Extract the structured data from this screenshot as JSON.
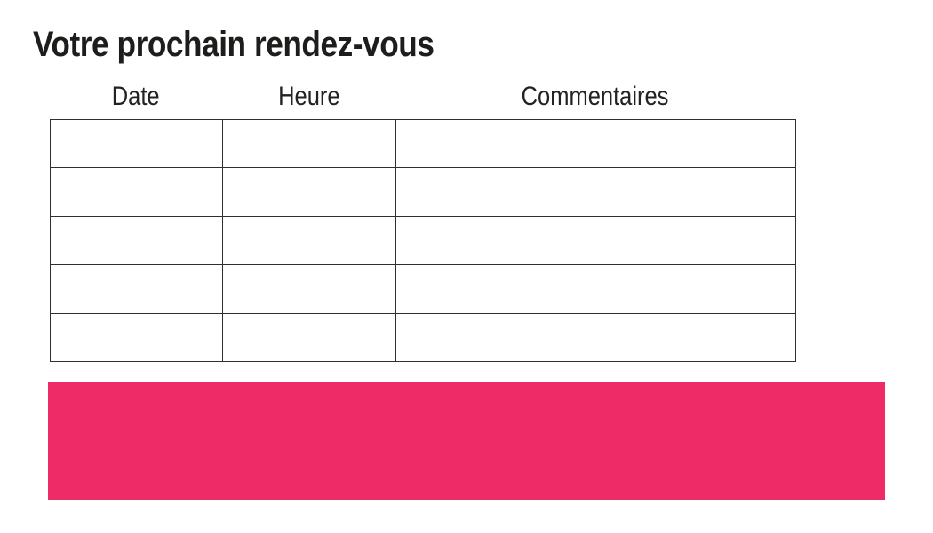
{
  "page": {
    "title": "Votre prochain rendez-vous"
  },
  "table": {
    "headers": [
      "Date",
      "Heure",
      "Commentaires"
    ],
    "rows": [
      [
        "",
        "",
        ""
      ],
      [
        "",
        "",
        ""
      ],
      [
        "",
        "",
        ""
      ],
      [
        "",
        "",
        ""
      ],
      [
        "",
        "",
        ""
      ]
    ]
  },
  "colors": {
    "accent": "#EE2A67",
    "table_border": "#2F2F2F",
    "text": "#1D1D1B"
  }
}
